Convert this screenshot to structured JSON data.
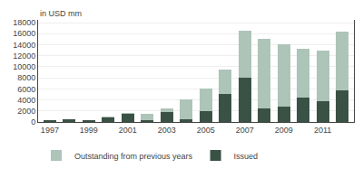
{
  "chart_data": {
    "type": "bar",
    "stacked": true,
    "ylabel": "in USD mm",
    "categories": [
      "1997",
      null,
      "1999",
      null,
      "2001",
      null,
      "2003",
      null,
      "2005",
      null,
      "2007",
      null,
      "2009",
      null,
      "2011",
      null
    ],
    "series": [
      {
        "name": "Issued",
        "color": "#3a5245",
        "values": [
          300,
          500,
          400,
          900,
          1400,
          350,
          1800,
          500,
          2000,
          5000,
          8000,
          2400,
          2800,
          4500,
          3800,
          5800
        ]
      },
      {
        "name": "Outstanding from previous years",
        "color": "#adc4b8",
        "values": [
          0,
          0,
          0,
          100,
          200,
          1100,
          600,
          3600,
          4000,
          4500,
          8500,
          12700,
          11200,
          8700,
          9200,
          10500
        ]
      }
    ],
    "ylim": [
      0,
      18500
    ],
    "yticks": [
      0,
      2000,
      4000,
      6000,
      8000,
      10000,
      12000,
      14000,
      16000,
      18000
    ],
    "grid": true,
    "legend": "lower left"
  }
}
